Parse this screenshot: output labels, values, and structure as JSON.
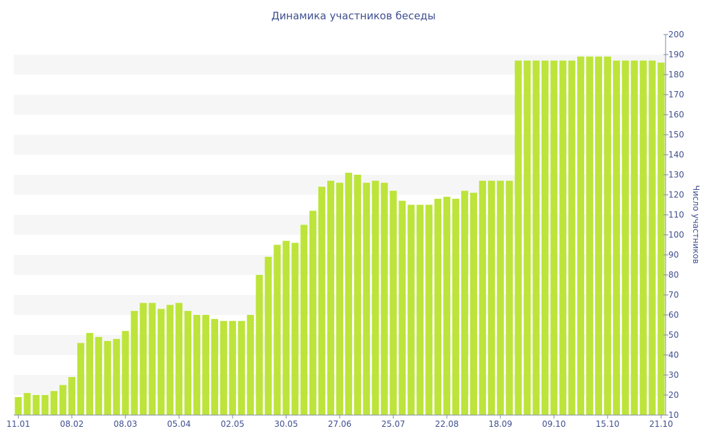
{
  "chart_data": {
    "type": "bar",
    "title": "Динамика участников беседы",
    "ylabel": "Число участников",
    "xlabel": "",
    "ylim": [
      10,
      200
    ],
    "y_ticks": [
      10,
      20,
      30,
      40,
      50,
      60,
      70,
      80,
      90,
      100,
      110,
      120,
      130,
      140,
      150,
      160,
      170,
      180,
      190,
      200
    ],
    "y_axis_position": "right",
    "grid": "alternating horizontal bands",
    "bar_color": "#bde43a",
    "x_tick_labels": [
      {
        "label": "11.01",
        "index": 0
      },
      {
        "label": "08.02",
        "index": 6
      },
      {
        "label": "08.03",
        "index": 12
      },
      {
        "label": "05.04",
        "index": 18
      },
      {
        "label": "02.05",
        "index": 24
      },
      {
        "label": "30.05",
        "index": 30
      },
      {
        "label": "27.06",
        "index": 36
      },
      {
        "label": "25.07",
        "index": 42
      },
      {
        "label": "22.08",
        "index": 48
      },
      {
        "label": "18.09",
        "index": 54
      },
      {
        "label": "09.10",
        "index": 60
      },
      {
        "label": "15.10",
        "index": 66
      },
      {
        "label": "21.10",
        "index": 72
      }
    ],
    "values": [
      19,
      21,
      20,
      20,
      22,
      25,
      29,
      46,
      51,
      49,
      47,
      48,
      52,
      62,
      66,
      66,
      63,
      65,
      66,
      62,
      60,
      60,
      58,
      57,
      57,
      57,
      60,
      80,
      89,
      95,
      97,
      96,
      105,
      112,
      124,
      127,
      126,
      131,
      130,
      126,
      127,
      126,
      122,
      117,
      115,
      115,
      115,
      118,
      119,
      118,
      122,
      121,
      127,
      127,
      127,
      127,
      187,
      187,
      187,
      187,
      187,
      187,
      187,
      189,
      189,
      189,
      189,
      187,
      187,
      187,
      187,
      187,
      186
    ]
  }
}
